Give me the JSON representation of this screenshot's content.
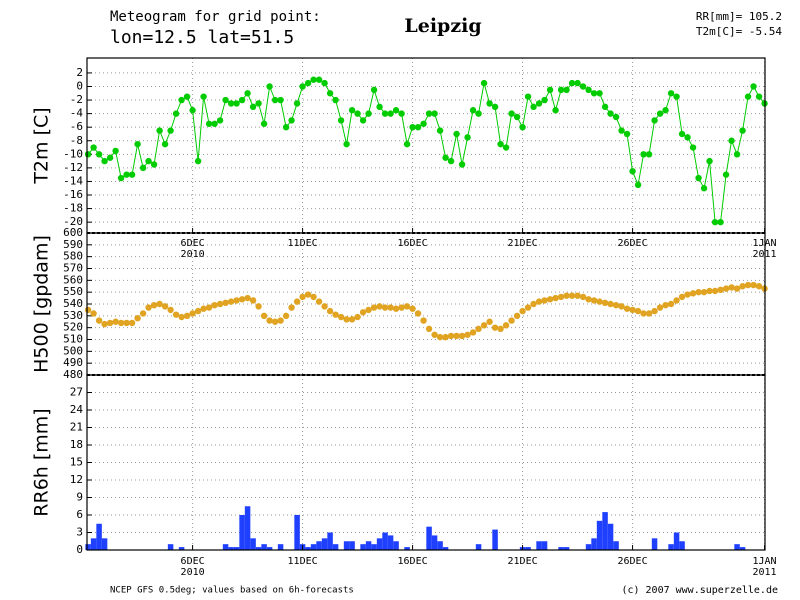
{
  "chart_data": {
    "type": "meteogram",
    "title": "Meteogram for grid point:",
    "subtitle": "lon=12.5 lat=51.5",
    "location": "Leipzig",
    "stats": [
      "RR[mm]= 105.2",
      "T2m[C]= -5.54"
    ],
    "footer_left": "NCEP GFS 0.5deg; values based on 6h-forecasts",
    "footer_right": "(c) 2007 www.superzelle.de",
    "xlim": [
      1.2,
      32.02
    ],
    "xticks": [
      {
        "value": 6,
        "label": "6DEC"
      },
      {
        "value": 11,
        "label": "11DEC"
      },
      {
        "value": 16,
        "label": "16DEC"
      },
      {
        "value": 21,
        "label": "21DEC"
      },
      {
        "value": 26,
        "label": "26DEC"
      },
      {
        "value": 32,
        "label": "1JAN"
      }
    ],
    "xtick_years": [
      {
        "value": 6,
        "label": "2010"
      },
      {
        "value": 32,
        "label": "2011"
      }
    ],
    "grid": true,
    "x": [
      1.25,
      1.5,
      1.75,
      2,
      2.25,
      2.5,
      2.75,
      3,
      3.25,
      3.5,
      3.75,
      4,
      4.25,
      4.5,
      4.75,
      5,
      5.25,
      5.5,
      5.75,
      6,
      6.25,
      6.5,
      6.75,
      7,
      7.25,
      7.5,
      7.75,
      8,
      8.25,
      8.5,
      8.75,
      9,
      9.25,
      9.5,
      9.75,
      10,
      10.25,
      10.5,
      10.75,
      11,
      11.25,
      11.5,
      11.75,
      12,
      12.25,
      12.5,
      12.75,
      13,
      13.25,
      13.5,
      13.75,
      14,
      14.25,
      14.5,
      14.75,
      15,
      15.25,
      15.5,
      15.75,
      16,
      16.25,
      16.5,
      16.75,
      17,
      17.25,
      17.5,
      17.75,
      18,
      18.25,
      18.5,
      18.75,
      19,
      19.25,
      19.5,
      19.75,
      20,
      20.25,
      20.5,
      20.75,
      21,
      21.25,
      21.5,
      21.75,
      22,
      22.25,
      22.5,
      22.75,
      23,
      23.25,
      23.5,
      23.75,
      24,
      24.25,
      24.5,
      24.75,
      25,
      25.25,
      25.5,
      25.75,
      26,
      26.25,
      26.5,
      26.75,
      27,
      27.25,
      27.5,
      27.75,
      28,
      28.25,
      28.5,
      28.75,
      29,
      29.25,
      29.5,
      29.75,
      30,
      30.25,
      30.5,
      30.75,
      31,
      31.25,
      31.5,
      31.75,
      32
    ],
    "panels": [
      {
        "type": "line",
        "ylabel": "T2m [C]",
        "color": "#00cc00",
        "ylim": [
          -21.6,
          4.2
        ],
        "yticks": [
          2,
          0,
          -2,
          -4,
          -6,
          -8,
          -10,
          -12,
          -14,
          -16,
          -18,
          -20
        ],
        "values": [
          -10,
          -9,
          -10,
          -11,
          -10.5,
          -9.5,
          -13.5,
          -13,
          -13,
          -8.5,
          -12,
          -11,
          -11.5,
          -6.5,
          -8.5,
          -6.5,
          -4,
          -2,
          -1.5,
          -3.5,
          -11,
          -1.5,
          -5.5,
          -5.5,
          -5,
          -2,
          -2.5,
          -2.5,
          -2,
          -1,
          -3,
          -2.5,
          -5.5,
          0,
          -2,
          -2,
          -6,
          -5,
          -2.5,
          0,
          0.5,
          1,
          1,
          0.5,
          -1,
          -2,
          -5,
          -8.5,
          -3.5,
          -4,
          -5,
          -4,
          -0.5,
          -3,
          -4,
          -4,
          -3.5,
          -4,
          -8.5,
          -6,
          -6,
          -5.5,
          -4,
          -4,
          -6.5,
          -10.5,
          -11,
          -7,
          -11.5,
          -7.5,
          -3.5,
          -4,
          0.5,
          -2.5,
          -3,
          -8.5,
          -9,
          -4,
          -4.5,
          -6,
          -1.5,
          -3,
          -2.5,
          -2,
          -0.5,
          -3.5,
          -0.5,
          -0.5,
          0.5,
          0.5,
          0,
          -0.5,
          -1,
          -1,
          -3,
          -4,
          -4.5,
          -6.5,
          -7,
          -12.5,
          -14.5,
          -10,
          -10,
          -5,
          -4,
          -3.5,
          -1,
          -1.5,
          -7,
          -7.5,
          -9,
          -13.5,
          -15,
          -11,
          -20,
          -20,
          -13,
          -8,
          -10,
          -6.5,
          -1.5,
          0,
          -1.5,
          -2.5
        ]
      },
      {
        "type": "scatter",
        "ylabel": "H500 [gpdam]",
        "color": "#e0a422",
        "ylim": [
          480,
          600
        ],
        "yticks": [
          600,
          590,
          580,
          570,
          560,
          550,
          540,
          530,
          520,
          510,
          500,
          490,
          480
        ],
        "values": [
          535,
          532,
          526,
          523,
          524,
          525,
          524,
          524,
          524,
          528,
          532,
          537,
          539,
          540,
          538,
          535,
          531,
          529,
          530,
          532,
          534,
          536,
          537,
          539,
          540,
          541,
          542,
          543,
          544,
          545,
          543,
          538,
          530,
          526,
          525,
          526,
          530,
          537,
          542,
          546,
          548,
          546,
          542,
          538,
          534,
          531,
          529,
          527,
          527,
          529,
          533,
          535,
          537,
          538,
          537,
          537,
          536,
          537,
          538,
          536,
          532,
          526,
          519,
          514,
          512,
          512,
          513,
          513,
          513,
          514,
          516,
          519,
          522,
          525,
          520,
          519,
          522,
          526,
          530,
          534,
          537,
          540,
          542,
          543,
          544,
          545,
          546,
          547,
          547,
          547,
          546,
          544,
          543,
          542,
          541,
          540,
          539,
          538,
          536,
          535,
          534,
          532,
          532,
          534,
          537,
          539,
          540,
          543,
          546,
          548,
          549,
          550,
          550,
          551,
          551,
          552,
          553,
          554,
          553,
          555,
          556,
          556,
          555,
          553
        ]
      },
      {
        "type": "bar",
        "ylabel": "RR6h [mm]",
        "color": "#2040ff",
        "ylim": [
          0,
          30
        ],
        "yticks": [
          27,
          24,
          21,
          18,
          15,
          12,
          9,
          6,
          3,
          0
        ],
        "values": [
          1,
          2,
          4.5,
          2,
          0,
          0,
          0,
          0,
          0,
          0,
          0,
          0,
          0,
          0,
          0,
          1,
          0,
          0.5,
          0,
          0,
          0,
          0,
          0,
          0,
          0,
          1,
          0.5,
          0.5,
          6,
          7.5,
          2,
          0.5,
          1,
          0.5,
          0,
          1,
          0,
          0,
          6,
          1,
          0.5,
          1,
          1.5,
          2,
          3,
          1,
          0,
          1.5,
          1.5,
          0,
          1,
          1.5,
          1,
          2,
          3,
          2.5,
          1.5,
          0,
          0.5,
          0,
          0,
          0,
          4,
          2.5,
          1.5,
          0.5,
          0,
          0,
          0,
          0,
          0,
          1,
          0,
          0,
          3.5,
          0,
          0,
          0,
          0,
          0.5,
          0.5,
          0,
          1.5,
          1.5,
          0,
          0,
          0.5,
          0.5,
          0,
          0,
          0,
          1,
          2,
          5,
          6.5,
          4.5,
          1.5,
          0,
          0,
          0,
          0,
          0,
          0,
          2,
          0,
          0,
          1,
          3,
          1.5,
          0,
          0,
          0,
          0,
          0,
          0,
          0,
          0,
          0,
          1,
          0.5,
          0,
          0,
          0,
          0
        ]
      }
    ]
  }
}
